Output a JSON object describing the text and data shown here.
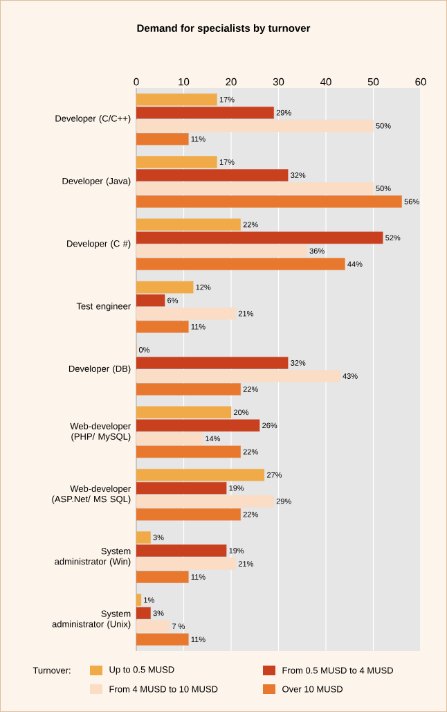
{
  "chart_data": {
    "type": "bar",
    "orientation": "horizontal",
    "title": "Demand for specialists by turnover",
    "legend_title": "Turnover:",
    "legend": "bottom",
    "grid": "x",
    "categories": [
      "Developer (C/C++)",
      "Developer (Java)",
      "Developer (C #)",
      "Test engineer",
      "Developer (DB)",
      "Web-developer (PHP/ MySQL)",
      "Web-developer (ASP.Net/ MS SQL)",
      "System administrator (Win)",
      "System administrator (Unix)"
    ],
    "xlim": [
      0,
      60
    ],
    "xticks": [
      0,
      10,
      20,
      30,
      40,
      50,
      60
    ],
    "series": [
      {
        "name": "Up to 0.5 MUSD",
        "color": "#f0aa48",
        "values": [
          17,
          17,
          22,
          12,
          0,
          20,
          27,
          3,
          1
        ],
        "value_labels": [
          "17%",
          "17%",
          "22%",
          "12%",
          "0%",
          "20%",
          "27%",
          "3%",
          "1%"
        ]
      },
      {
        "name": "From 0.5 MUSD to 4 MUSD",
        "color": "#c8401e",
        "values": [
          29,
          32,
          52,
          6,
          32,
          26,
          19,
          19,
          3
        ],
        "value_labels": [
          "29%",
          "32%",
          "52%",
          "6%",
          "32%",
          "26%",
          "19%",
          "19%",
          "3%"
        ]
      },
      {
        "name": "From 4 MUSD to 10 MUSD",
        "color": "#fbdcc4",
        "values": [
          50,
          50,
          36,
          21,
          43,
          14,
          29,
          21,
          7
        ],
        "value_labels": [
          "50%",
          "50%",
          "36%",
          "21%",
          "43%",
          "14%",
          "29%",
          "21%",
          "7 %"
        ]
      },
      {
        "name": "Over 10 MUSD",
        "color": "#e8782e",
        "values": [
          11,
          56,
          44,
          11,
          22,
          22,
          22,
          11,
          11
        ],
        "value_labels": [
          "11%",
          "56%",
          "44%",
          "11%",
          "22%",
          "22%",
          "22%",
          "11%",
          "11%"
        ]
      }
    ]
  }
}
